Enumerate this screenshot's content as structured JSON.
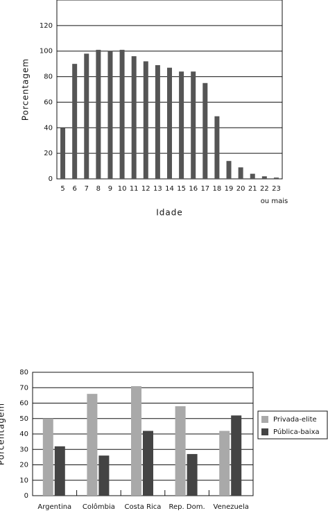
{
  "chart_data": [
    {
      "type": "bar",
      "x_label": "Idade",
      "y_label": "Porcentagem",
      "categories": [
        "5",
        "6",
        "7",
        "8",
        "9",
        "10",
        "11",
        "12",
        "13",
        "14",
        "15",
        "16",
        "17",
        "18",
        "19",
        "20",
        "21",
        "22",
        "23"
      ],
      "last_category_note": "ou mais",
      "values": [
        40,
        90,
        98,
        101,
        100,
        101,
        96,
        92,
        89,
        87,
        84,
        84,
        75,
        49,
        14,
        9,
        4,
        2,
        1
      ],
      "color": "#555555",
      "ylim": [
        0,
        140
      ],
      "yticks": [
        0,
        20,
        40,
        60,
        80,
        100,
        120
      ],
      "grid": true
    },
    {
      "type": "grouped-bar",
      "y_label": "Porcentagem",
      "categories": [
        "Argentina",
        "Colômbia",
        "Costa Rica",
        "Rep. Dom.",
        "Venezuela"
      ],
      "series": [
        {
          "name": "Privada-elite",
          "color": "#a9a9a9",
          "values": [
            50,
            66,
            71,
            58,
            42
          ]
        },
        {
          "name": "Pública-baixa",
          "color": "#444444",
          "values": [
            32,
            26,
            42,
            27,
            52
          ]
        }
      ],
      "ylim": [
        0,
        80
      ],
      "yticks": [
        0,
        10,
        20,
        30,
        40,
        50,
        60,
        70,
        80
      ],
      "grid": true,
      "legend": "right"
    }
  ]
}
